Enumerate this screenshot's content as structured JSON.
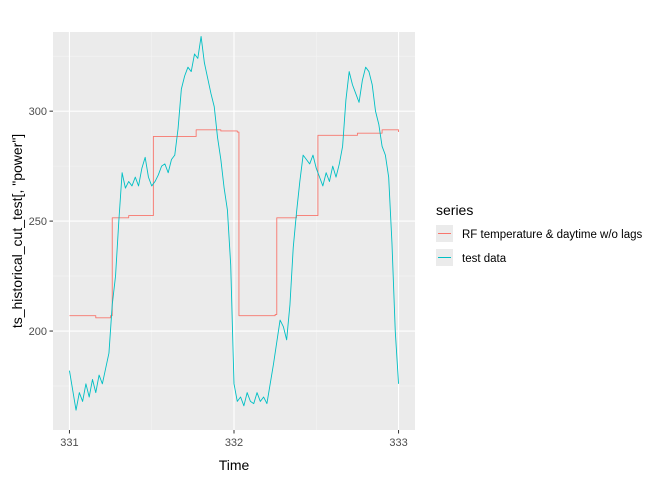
{
  "chart_data": {
    "type": "line",
    "xlabel": "Time",
    "ylabel": "ts_historical_cut_test[, \"power\"]",
    "xlim": [
      330.9,
      333.1
    ],
    "ylim": [
      155,
      336
    ],
    "x_ticks": [
      331,
      332,
      333
    ],
    "x_tick_labels": [
      "331",
      "332",
      "333"
    ],
    "x_minor_ticks": [
      331.5,
      332.5
    ],
    "y_ticks": [
      200,
      250,
      300
    ],
    "y_tick_labels": [
      "200",
      "250",
      "300"
    ],
    "y_minor_ticks": [
      175,
      225,
      275,
      325
    ],
    "grid": true,
    "legend": {
      "title": "series",
      "placement": "right"
    },
    "series": [
      {
        "name": "RF temperature & daytime w/o lags",
        "color": "#F8766D",
        "step": true,
        "points": [
          [
            331.0,
            207
          ],
          [
            331.16,
            206
          ],
          [
            331.25,
            207
          ],
          [
            331.26,
            251.5
          ],
          [
            331.35,
            251.5
          ],
          [
            331.36,
            252.5
          ],
          [
            331.5,
            252.5
          ],
          [
            331.51,
            288.5
          ],
          [
            331.75,
            288.5
          ],
          [
            331.77,
            291.5
          ],
          [
            331.92,
            291
          ],
          [
            332.02,
            290.5
          ],
          [
            332.03,
            207
          ],
          [
            332.17,
            207
          ],
          [
            332.25,
            207.5
          ],
          [
            332.26,
            251.5
          ],
          [
            332.37,
            251.5
          ],
          [
            332.38,
            252.5
          ],
          [
            332.5,
            252.5
          ],
          [
            332.51,
            289
          ],
          [
            332.74,
            289
          ],
          [
            332.75,
            290
          ],
          [
            332.9,
            291.5
          ],
          [
            333.0,
            290.5
          ]
        ]
      },
      {
        "name": "test data",
        "color": "#00BFC4",
        "step": false,
        "points": [
          [
            331.0,
            182
          ],
          [
            331.02,
            173
          ],
          [
            331.04,
            164
          ],
          [
            331.06,
            172
          ],
          [
            331.08,
            168
          ],
          [
            331.1,
            176
          ],
          [
            331.12,
            170
          ],
          [
            331.14,
            178
          ],
          [
            331.16,
            172
          ],
          [
            331.18,
            180
          ],
          [
            331.2,
            176
          ],
          [
            331.22,
            183
          ],
          [
            331.24,
            190
          ],
          [
            331.26,
            212
          ],
          [
            331.28,
            225
          ],
          [
            331.3,
            250
          ],
          [
            331.32,
            272
          ],
          [
            331.34,
            265
          ],
          [
            331.36,
            268
          ],
          [
            331.38,
            266
          ],
          [
            331.4,
            270
          ],
          [
            331.42,
            266
          ],
          [
            331.44,
            274
          ],
          [
            331.46,
            279
          ],
          [
            331.48,
            270
          ],
          [
            331.5,
            266
          ],
          [
            331.52,
            268
          ],
          [
            331.54,
            271
          ],
          [
            331.56,
            275
          ],
          [
            331.58,
            276
          ],
          [
            331.6,
            272
          ],
          [
            331.62,
            278
          ],
          [
            331.64,
            280
          ],
          [
            331.66,
            292
          ],
          [
            331.68,
            310
          ],
          [
            331.7,
            316
          ],
          [
            331.72,
            320
          ],
          [
            331.74,
            318
          ],
          [
            331.76,
            326
          ],
          [
            331.78,
            324
          ],
          [
            331.8,
            334
          ],
          [
            331.82,
            322
          ],
          [
            331.84,
            315
          ],
          [
            331.86,
            308
          ],
          [
            331.88,
            302
          ],
          [
            331.9,
            288
          ],
          [
            331.92,
            278
          ],
          [
            331.94,
            265
          ],
          [
            331.96,
            255
          ],
          [
            331.98,
            230
          ],
          [
            332.0,
            176
          ],
          [
            332.02,
            168
          ],
          [
            332.04,
            170
          ],
          [
            332.06,
            166
          ],
          [
            332.08,
            172
          ],
          [
            332.1,
            168
          ],
          [
            332.12,
            167
          ],
          [
            332.14,
            172
          ],
          [
            332.16,
            168
          ],
          [
            332.18,
            170
          ],
          [
            332.2,
            167
          ],
          [
            332.22,
            176
          ],
          [
            332.24,
            185
          ],
          [
            332.26,
            195
          ],
          [
            332.28,
            205
          ],
          [
            332.3,
            202
          ],
          [
            332.32,
            196
          ],
          [
            332.34,
            212
          ],
          [
            332.36,
            238
          ],
          [
            332.38,
            254
          ],
          [
            332.4,
            268
          ],
          [
            332.42,
            280
          ],
          [
            332.44,
            278
          ],
          [
            332.46,
            276
          ],
          [
            332.48,
            280
          ],
          [
            332.5,
            274
          ],
          [
            332.52,
            270
          ],
          [
            332.54,
            266
          ],
          [
            332.56,
            272
          ],
          [
            332.58,
            268
          ],
          [
            332.6,
            275
          ],
          [
            332.62,
            270
          ],
          [
            332.64,
            276
          ],
          [
            332.66,
            284
          ],
          [
            332.68,
            305
          ],
          [
            332.7,
            318
          ],
          [
            332.72,
            312
          ],
          [
            332.74,
            308
          ],
          [
            332.76,
            304
          ],
          [
            332.78,
            314
          ],
          [
            332.8,
            320
          ],
          [
            332.82,
            318
          ],
          [
            332.84,
            312
          ],
          [
            332.86,
            300
          ],
          [
            332.88,
            294
          ],
          [
            332.9,
            284
          ],
          [
            332.92,
            280
          ],
          [
            332.94,
            270
          ],
          [
            332.96,
            240
          ],
          [
            332.98,
            200
          ],
          [
            333.0,
            176
          ]
        ]
      }
    ]
  }
}
